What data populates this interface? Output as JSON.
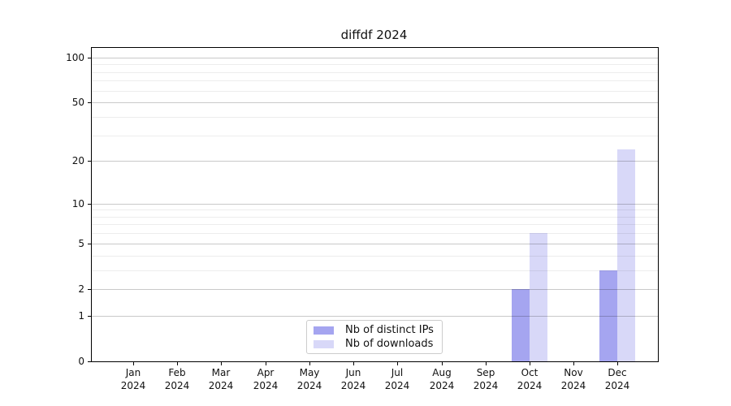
{
  "chart_data": {
    "type": "bar",
    "title": "diffdf 2024",
    "categories": [
      {
        "month": "Jan",
        "year": "2024"
      },
      {
        "month": "Feb",
        "year": "2024"
      },
      {
        "month": "Mar",
        "year": "2024"
      },
      {
        "month": "Apr",
        "year": "2024"
      },
      {
        "month": "May",
        "year": "2024"
      },
      {
        "month": "Jun",
        "year": "2024"
      },
      {
        "month": "Jul",
        "year": "2024"
      },
      {
        "month": "Aug",
        "year": "2024"
      },
      {
        "month": "Sep",
        "year": "2024"
      },
      {
        "month": "Oct",
        "year": "2024"
      },
      {
        "month": "Nov",
        "year": "2024"
      },
      {
        "month": "Dec",
        "year": "2024"
      }
    ],
    "series": [
      {
        "name": "Nb of distinct IPs",
        "color": "#a5a5f0",
        "values": [
          0,
          0,
          0,
          0,
          0,
          0,
          0,
          0,
          0,
          2,
          0,
          3
        ]
      },
      {
        "name": "Nb of downloads",
        "color": "#d8d8f8",
        "values": [
          0,
          0,
          0,
          0,
          0,
          0,
          0,
          0,
          0,
          6,
          0,
          24
        ]
      }
    ],
    "y_axis": {
      "scale": "log10(1+v)",
      "ylim": [
        0,
        116
      ],
      "major_ticks": [
        0,
        1,
        2,
        5,
        10,
        20,
        50,
        100
      ],
      "minor_ticks": [
        3,
        4,
        6,
        7,
        8,
        9,
        30,
        40,
        60,
        70,
        80,
        90
      ]
    },
    "x_axis": {
      "tick_label_format": "month newline year"
    },
    "legend": {
      "position": "lower center",
      "entries": [
        "Nb of distinct IPs",
        "Nb of downloads"
      ]
    },
    "grid": {
      "major_color": "#c9c9c9",
      "minor_color": "#ececec"
    }
  }
}
